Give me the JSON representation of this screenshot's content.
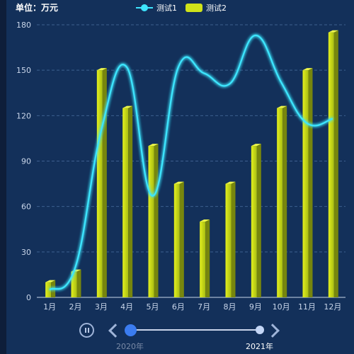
{
  "unit_label": "单位：万元",
  "chart_data": {
    "type": "bar",
    "categories": [
      "1月",
      "2月",
      "3月",
      "4月",
      "5月",
      "6月",
      "7月",
      "8月",
      "9月",
      "10月",
      "11月",
      "12月"
    ],
    "series": [
      {
        "name": "测试1",
        "type": "line",
        "smooth": true,
        "color": "#3ee6ff",
        "values": [
          5,
          20,
          110,
          152,
          67,
          152,
          148,
          141,
          173,
          142,
          115,
          118
        ]
      },
      {
        "name": "测试2",
        "type": "bar",
        "color": "#cfe31a",
        "values": [
          10,
          17,
          150,
          125,
          100,
          75,
          50,
          75,
          100,
          125,
          150,
          175
        ]
      }
    ],
    "ylim": [
      0,
      180
    ],
    "yticks": [
      0,
      30,
      60,
      90,
      120,
      150,
      180
    ],
    "grid": "dashed horizontal",
    "legend": "top-center"
  },
  "timeline": {
    "start_label": "2020年",
    "end_label": "2021年",
    "state": "playing"
  }
}
